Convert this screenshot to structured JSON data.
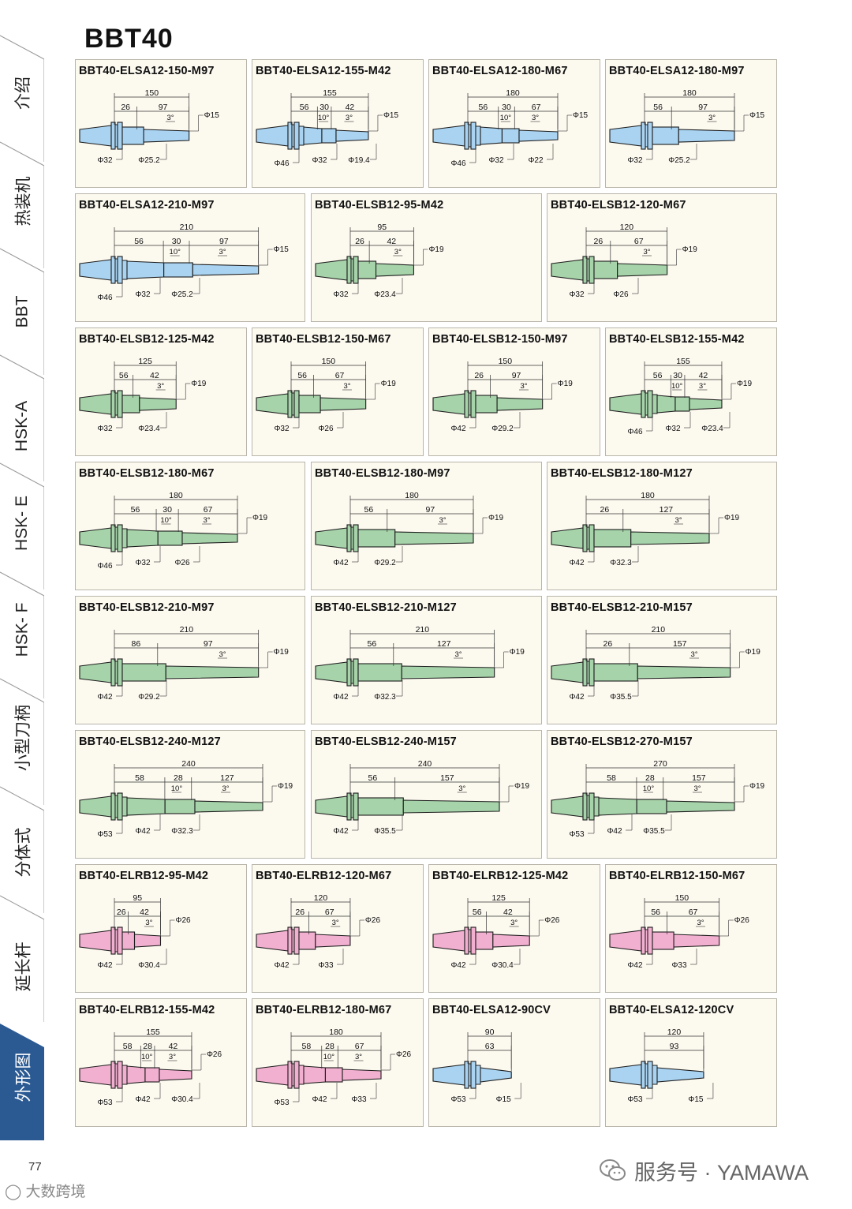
{
  "page": {
    "title": "BBT40",
    "page_number": "77"
  },
  "sidebar": {
    "items": [
      {
        "label": "介绍",
        "active": false
      },
      {
        "label": "热装机",
        "active": false
      },
      {
        "label": "BBT",
        "active": false
      },
      {
        "label": "HSK-A",
        "active": false
      },
      {
        "label": "HSK- E",
        "active": false
      },
      {
        "label": "HSK- F",
        "active": false
      },
      {
        "label": "小型刀柄",
        "active": false
      },
      {
        "label": "分体式",
        "active": false
      },
      {
        "label": "延长杆",
        "active": false
      },
      {
        "label": "外形图",
        "active": true
      }
    ]
  },
  "colors": {
    "blue": "#a9d3f1",
    "green": "#a6d3a9",
    "pink": "#f2b0d0",
    "sidebar_active": "#2b5a93",
    "card_bg": "#fcf9ef",
    "card_border": "#b9b5aa"
  },
  "rows": [
    [
      {
        "title": "BBT40-ELSA12-150-M97",
        "color": "blue",
        "total": "150",
        "segs": [
          "26",
          "97"
        ],
        "angles": [
          "3°"
        ],
        "tip": "Φ15",
        "diams": [
          "Φ32",
          "Φ25.2"
        ]
      },
      {
        "title": "BBT40-ELSA12-155-M42",
        "color": "blue",
        "total": "155",
        "segs": [
          "56",
          "30",
          "42"
        ],
        "angles": [
          "10°",
          "3°"
        ],
        "tip": "Φ15",
        "diams": [
          "Φ46",
          "Φ32",
          "Φ19.4"
        ]
      },
      {
        "title": "BBT40-ELSA12-180-M67",
        "color": "blue",
        "total": "180",
        "segs": [
          "56",
          "30",
          "67"
        ],
        "angles": [
          "10°",
          "3°"
        ],
        "tip": "Φ15",
        "diams": [
          "Φ46",
          "Φ32",
          "Φ22"
        ]
      },
      {
        "title": "BBT40-ELSA12-180-M97",
        "color": "blue",
        "total": "180",
        "segs": [
          "56",
          "97"
        ],
        "angles": [
          "3°"
        ],
        "tip": "Φ15",
        "diams": [
          "Φ32",
          "Φ25.2"
        ]
      }
    ],
    [
      {
        "title": "BBT40-ELSA12-210-M97",
        "color": "blue",
        "total": "210",
        "segs": [
          "56",
          "30",
          "97"
        ],
        "angles": [
          "10°",
          "3°"
        ],
        "tip": "Φ15",
        "diams": [
          "Φ46",
          "Φ32",
          "Φ25.2"
        ]
      },
      {
        "title": "BBT40-ELSB12-95-M42",
        "color": "green",
        "total": "95",
        "segs": [
          "26",
          "42"
        ],
        "angles": [
          "3°"
        ],
        "tip": "Φ19",
        "diams": [
          "Φ32",
          "Φ23.4"
        ]
      },
      {
        "title": "BBT40-ELSB12-120-M67",
        "color": "green",
        "total": "120",
        "segs": [
          "26",
          "67"
        ],
        "angles": [
          "3°"
        ],
        "tip": "Φ19",
        "diams": [
          "Φ32",
          "Φ26"
        ]
      }
    ],
    [
      {
        "title": "BBT40-ELSB12-125-M42",
        "color": "green",
        "total": "125",
        "segs": [
          "56",
          "42"
        ],
        "angles": [
          "3°"
        ],
        "tip": "Φ19",
        "diams": [
          "Φ32",
          "Φ23.4"
        ]
      },
      {
        "title": "BBT40-ELSB12-150-M67",
        "color": "green",
        "total": "150",
        "segs": [
          "56",
          "67"
        ],
        "angles": [
          "3°"
        ],
        "tip": "Φ19",
        "diams": [
          "Φ32",
          "Φ26"
        ]
      },
      {
        "title": "BBT40-ELSB12-150-M97",
        "color": "green",
        "total": "150",
        "segs": [
          "26",
          "97"
        ],
        "angles": [
          "3°"
        ],
        "tip": "Φ19",
        "diams": [
          "Φ42",
          "Φ29.2"
        ]
      },
      {
        "title": "BBT40-ELSB12-155-M42",
        "color": "green",
        "total": "155",
        "segs": [
          "56",
          "30",
          "42"
        ],
        "angles": [
          "10°",
          "3°"
        ],
        "tip": "Φ19",
        "diams": [
          "Φ46",
          "Φ32",
          "Φ23.4"
        ]
      }
    ],
    [
      {
        "title": "BBT40-ELSB12-180-M67",
        "color": "green",
        "total": "180",
        "segs": [
          "56",
          "30",
          "67"
        ],
        "angles": [
          "10°",
          "3°"
        ],
        "tip": "Φ19",
        "diams": [
          "Φ46",
          "Φ32",
          "Φ26"
        ]
      },
      {
        "title": "BBT40-ELSB12-180-M97",
        "color": "green",
        "total": "180",
        "segs": [
          "56",
          "97"
        ],
        "angles": [
          "3°"
        ],
        "tip": "Φ19",
        "diams": [
          "Φ42",
          "Φ29.2"
        ]
      },
      {
        "title": "BBT40-ELSB12-180-M127",
        "color": "green",
        "total": "180",
        "segs": [
          "26",
          "127"
        ],
        "angles": [
          "3°"
        ],
        "tip": "Φ19",
        "diams": [
          "Φ42",
          "Φ32.3"
        ]
      }
    ],
    [
      {
        "title": "BBT40-ELSB12-210-M97",
        "color": "green",
        "total": "210",
        "segs": [
          "86",
          "97"
        ],
        "angles": [
          "3°"
        ],
        "tip": "Φ19",
        "diams": [
          "Φ42",
          "Φ29.2"
        ]
      },
      {
        "title": "BBT40-ELSB12-210-M127",
        "color": "green",
        "total": "210",
        "segs": [
          "56",
          "127"
        ],
        "angles": [
          "3°"
        ],
        "tip": "Φ19",
        "diams": [
          "Φ42",
          "Φ32.3"
        ]
      },
      {
        "title": "BBT40-ELSB12-210-M157",
        "color": "green",
        "total": "210",
        "segs": [
          "26",
          "157"
        ],
        "angles": [
          "3°"
        ],
        "tip": "Φ19",
        "diams": [
          "Φ42",
          "Φ35.5"
        ]
      }
    ],
    [
      {
        "title": "BBT40-ELSB12-240-M127",
        "color": "green",
        "total": "240",
        "segs": [
          "58",
          "28",
          "127"
        ],
        "angles": [
          "10°",
          "3°"
        ],
        "tip": "Φ19",
        "diams": [
          "Φ53",
          "Φ42",
          "Φ32.3"
        ]
      },
      {
        "title": "BBT40-ELSB12-240-M157",
        "color": "green",
        "total": "240",
        "segs": [
          "56",
          "157"
        ],
        "angles": [
          "3°"
        ],
        "tip": "Φ19",
        "diams": [
          "Φ42",
          "Φ35.5"
        ]
      },
      {
        "title": "BBT40-ELSB12-270-M157",
        "color": "green",
        "total": "270",
        "segs": [
          "58",
          "28",
          "157"
        ],
        "angles": [
          "10°",
          "3°"
        ],
        "tip": "Φ19",
        "diams": [
          "Φ53",
          "Φ42",
          "Φ35.5"
        ]
      }
    ],
    [
      {
        "title": "BBT40-ELRB12-95-M42",
        "color": "pink",
        "total": "95",
        "segs": [
          "26",
          "42"
        ],
        "angles": [
          "3°"
        ],
        "tip": "Φ26",
        "diams": [
          "Φ42",
          "Φ30.4"
        ]
      },
      {
        "title": "BBT40-ELRB12-120-M67",
        "color": "pink",
        "total": "120",
        "segs": [
          "26",
          "67"
        ],
        "angles": [
          "3°"
        ],
        "tip": "Φ26",
        "diams": [
          "Φ42",
          "Φ33"
        ]
      },
      {
        "title": "BBT40-ELRB12-125-M42",
        "color": "pink",
        "total": "125",
        "segs": [
          "56",
          "42"
        ],
        "angles": [
          "3°"
        ],
        "tip": "Φ26",
        "diams": [
          "Φ42",
          "Φ30.4"
        ]
      },
      {
        "title": "BBT40-ELRB12-150-M67",
        "color": "pink",
        "total": "150",
        "segs": [
          "56",
          "67"
        ],
        "angles": [
          "3°"
        ],
        "tip": "Φ26",
        "diams": [
          "Φ42",
          "Φ33"
        ]
      }
    ],
    [
      {
        "title": "BBT40-ELRB12-155-M42",
        "color": "pink",
        "total": "155",
        "segs": [
          "58",
          "28",
          "42"
        ],
        "angles": [
          "10°",
          "3°"
        ],
        "tip": "Φ26",
        "diams": [
          "Φ53",
          "Φ42",
          "Φ30.4"
        ]
      },
      {
        "title": "BBT40-ELRB12-180-M67",
        "color": "pink",
        "total": "180",
        "segs": [
          "58",
          "28",
          "67"
        ],
        "angles": [
          "10°",
          "3°"
        ],
        "tip": "Φ26",
        "diams": [
          "Φ53",
          "Φ42",
          "Φ33"
        ]
      },
      {
        "title": "BBT40-ELSA12-90CV",
        "color": "blue",
        "total": "90",
        "segs": [
          "63"
        ],
        "angles": [],
        "tip": "",
        "diams": [
          "Φ53",
          "Φ15"
        ]
      },
      {
        "title": "BBT40-ELSA12-120CV",
        "color": "blue",
        "total": "120",
        "segs": [
          "93"
        ],
        "angles": [],
        "tip": "",
        "diams": [
          "Φ53",
          "Φ15"
        ]
      }
    ]
  ],
  "footer": {
    "watermark_left": "大数跨境",
    "watermark_right": "服务号 · YAMAWA"
  }
}
